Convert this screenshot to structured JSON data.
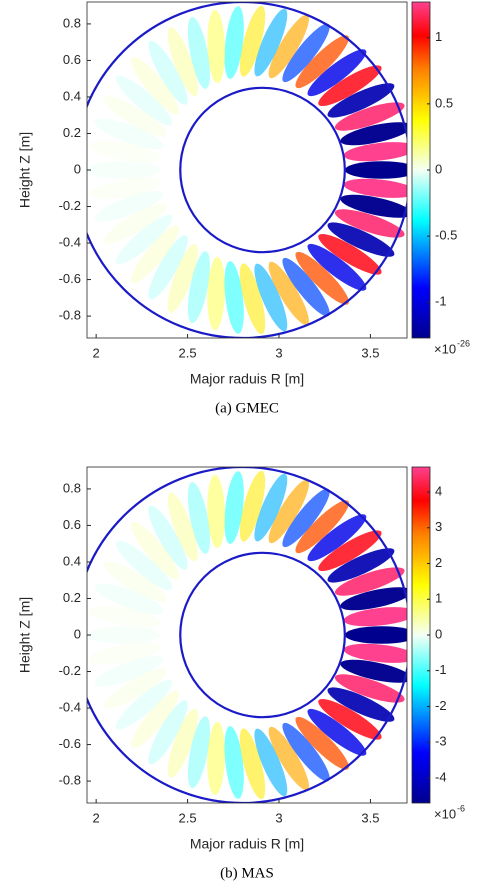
{
  "chart_data": [
    {
      "type": "heatmap",
      "caption": "(a)  GMEC",
      "xlabel": "Major raduis R [m]",
      "ylabel": "Height Z [m]",
      "xlim": [
        1.95,
        3.7
      ],
      "ylim": [
        -0.92,
        0.92
      ],
      "xticks": [
        2,
        2.5,
        3,
        3.5
      ],
      "yticks": [
        -0.8,
        -0.6,
        -0.4,
        -0.2,
        0,
        0.2,
        0.4,
        0.6,
        0.8
      ],
      "clim": [
        -1.27,
        1.27
      ],
      "colorbar_ticks": [
        -1,
        -0.5,
        0,
        0.5,
        1
      ],
      "colorbar_multiplier": {
        "base": "×10",
        "exponent": "-26"
      },
      "boundaries": [
        {
          "center": [
            2.8,
            0
          ],
          "radius": 0.92,
          "color": "#1a1ac8"
        },
        {
          "center": [
            2.91,
            0
          ],
          "radius": 0.45,
          "color": "#1a1ac8"
        }
      ]
    },
    {
      "type": "heatmap",
      "caption": "(b)  MAS",
      "xlabel": "Major raduis R [m]",
      "ylabel": "Height Z [m]",
      "xlim": [
        1.95,
        3.7
      ],
      "ylim": [
        -0.92,
        0.92
      ],
      "xticks": [
        2,
        2.5,
        3,
        3.5
      ],
      "yticks": [
        -0.8,
        -0.6,
        -0.4,
        -0.2,
        0,
        0.2,
        0.4,
        0.6,
        0.8
      ],
      "clim": [
        -4.7,
        4.7
      ],
      "colorbar_ticks": [
        -4,
        -3,
        -2,
        -1,
        0,
        1,
        2,
        3,
        4
      ],
      "colorbar_multiplier": {
        "base": "×10",
        "exponent": "-6"
      },
      "boundaries": [
        {
          "center": [
            2.8,
            0
          ],
          "radius": 0.92,
          "color": "#1a1ac8"
        },
        {
          "center": [
            2.91,
            0
          ],
          "radius": 0.45,
          "color": "#1a1ac8"
        }
      ]
    }
  ]
}
